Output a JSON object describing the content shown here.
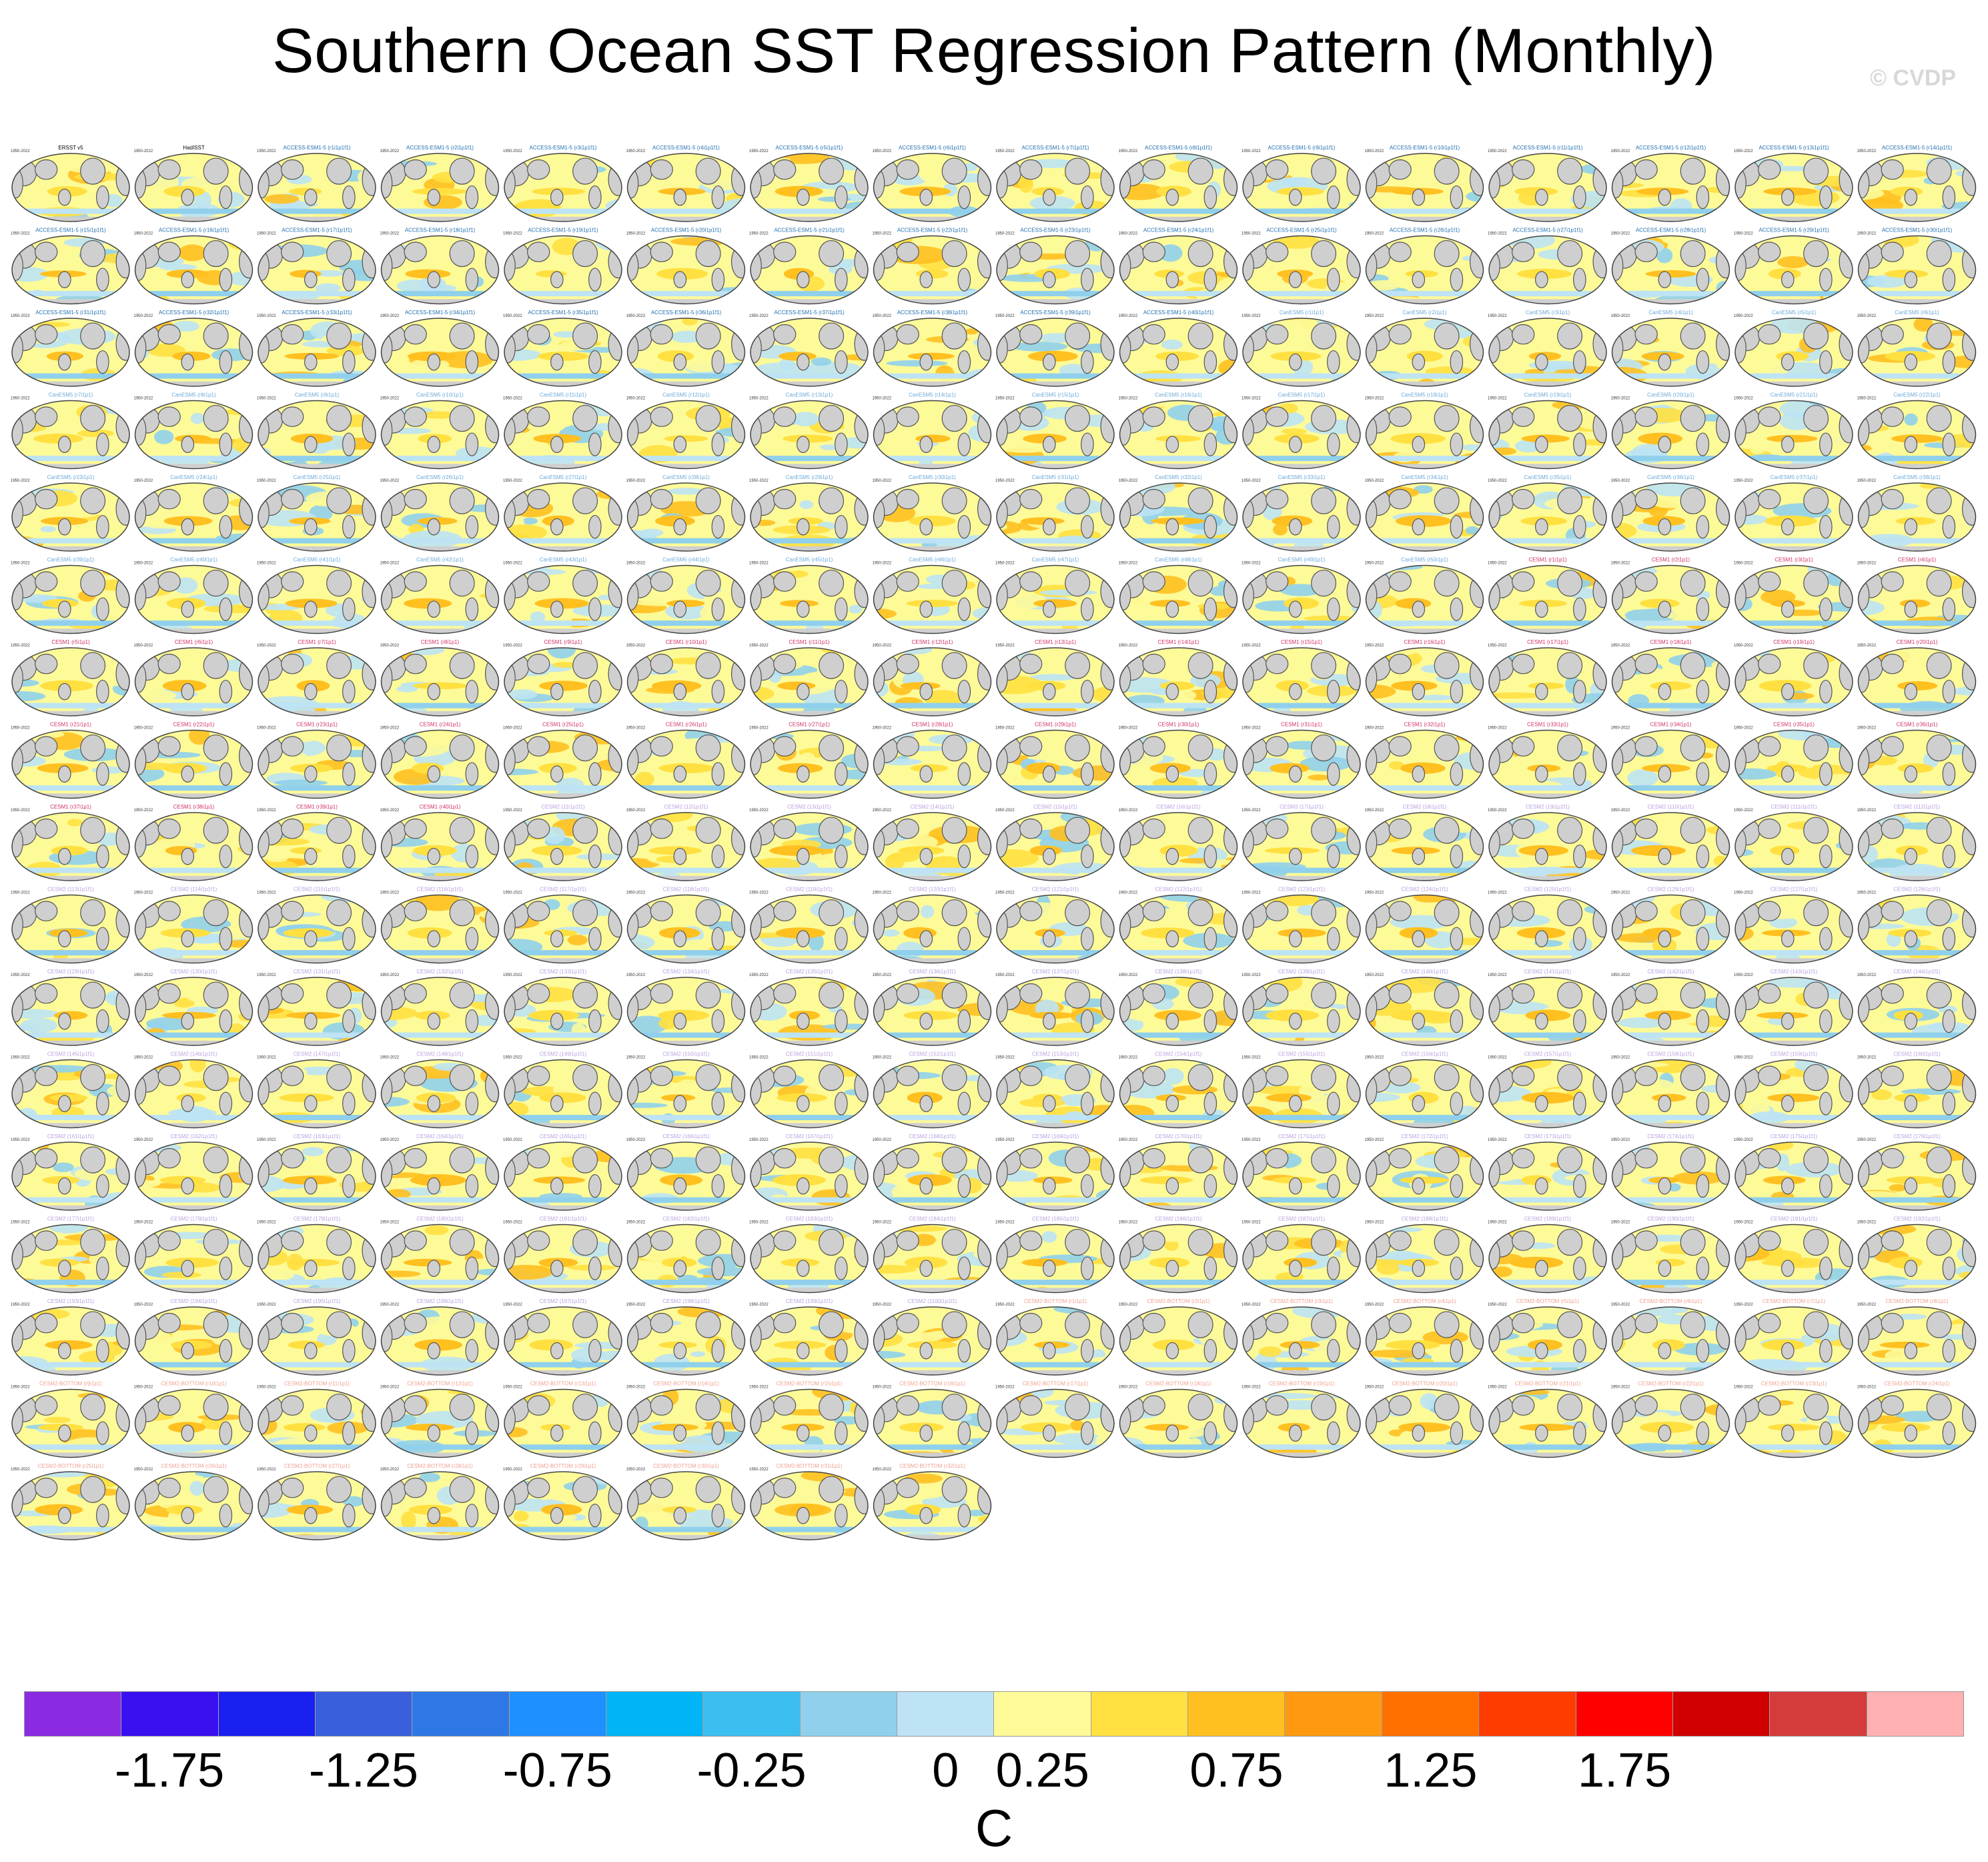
{
  "figure": {
    "title": "Southern Ocean SST Regression Pattern (Monthly)",
    "watermark": "© CVDP",
    "period_label": "1950-2022",
    "units": "C"
  },
  "legend": {
    "ticks": [
      "-1.75",
      "-1.25",
      "-0.75",
      "-0.25",
      "0",
      "0.25",
      "0.75",
      "1.25",
      "1.75"
    ],
    "colors": [
      "#8a2be2",
      "#3a10f0",
      "#1a20f0",
      "#3a5fdd",
      "#2e78e6",
      "#1e90ff",
      "#00b4f5",
      "#3cbef0",
      "#90d0ec",
      "#bde3f4",
      "#fdfa98",
      "#ffe040",
      "#ffc020",
      "#ff9a10",
      "#ff7000",
      "#ff3c00",
      "#ff0000",
      "#d00000",
      "#d43c3c",
      "#ffb0b0"
    ]
  },
  "panels": {
    "observations": [
      "ERSST v5",
      "HadISST"
    ],
    "label_colors": {
      "observation": "#000000",
      "ACCESS-ESM1-5": "#1f6fb0",
      "CanESM5": "#6aa8d8",
      "CESM1": "#d03060",
      "CESM2": "#b9a0e0",
      "CESM2-BOTTOM": "#f0a090"
    },
    "ensemble_groups": [
      {
        "model": "ACCESS-ESM1-5",
        "label_fmt": "ACCESS-ESM1-5 (r{n}i1p1f1)",
        "count": 40
      },
      {
        "model": "CanESM5",
        "label_fmt": "CanESM5 (r{n}i1p1)",
        "count": 50
      },
      {
        "model": "CESM1",
        "label_fmt": "CESM1 (r{n}i1p1)",
        "count": 40
      },
      {
        "model": "CESM2",
        "label_fmt": "CESM2 (1{n}i1p1f1)",
        "count": 100
      },
      {
        "model": "CESM2-BOTTOM",
        "label_fmt": "CESM2-BOTTOM (r{n}i1p1)",
        "count": 32
      }
    ]
  }
}
